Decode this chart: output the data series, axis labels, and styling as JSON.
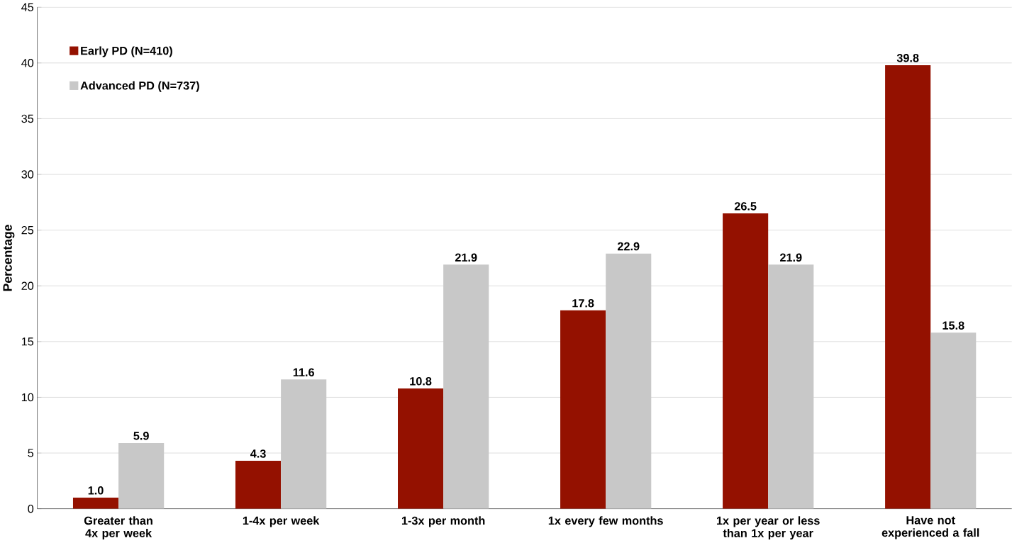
{
  "chart_data": {
    "type": "bar",
    "ylabel": "Percentage",
    "categories": [
      "Greater than 4x per week",
      "1-4x per week",
      "1-3x per month",
      "1x every few months",
      "1x per year or less than 1x per year",
      "Have not experienced a fall"
    ],
    "series": [
      {
        "name": "Early PD (N=410)",
        "color": "#941100",
        "values": [
          1.0,
          4.3,
          10.8,
          17.8,
          26.5,
          39.8
        ],
        "value_labels": [
          "1.0",
          "4.3",
          "10.8",
          "17.8",
          "26.5",
          "39.8"
        ]
      },
      {
        "name": "Advanced PD (N=737)",
        "color": "#c8c8c8",
        "values": [
          5.9,
          11.6,
          21.9,
          22.9,
          21.9,
          15.8
        ],
        "value_labels": [
          "5.9",
          "11.6",
          "21.9",
          "22.9",
          "21.9",
          "15.8"
        ]
      }
    ],
    "ylim": [
      0,
      45
    ],
    "yticks": [
      0,
      5,
      10,
      15,
      20,
      25,
      30,
      35,
      40,
      45
    ],
    "grid": "y",
    "legend": "top left"
  }
}
